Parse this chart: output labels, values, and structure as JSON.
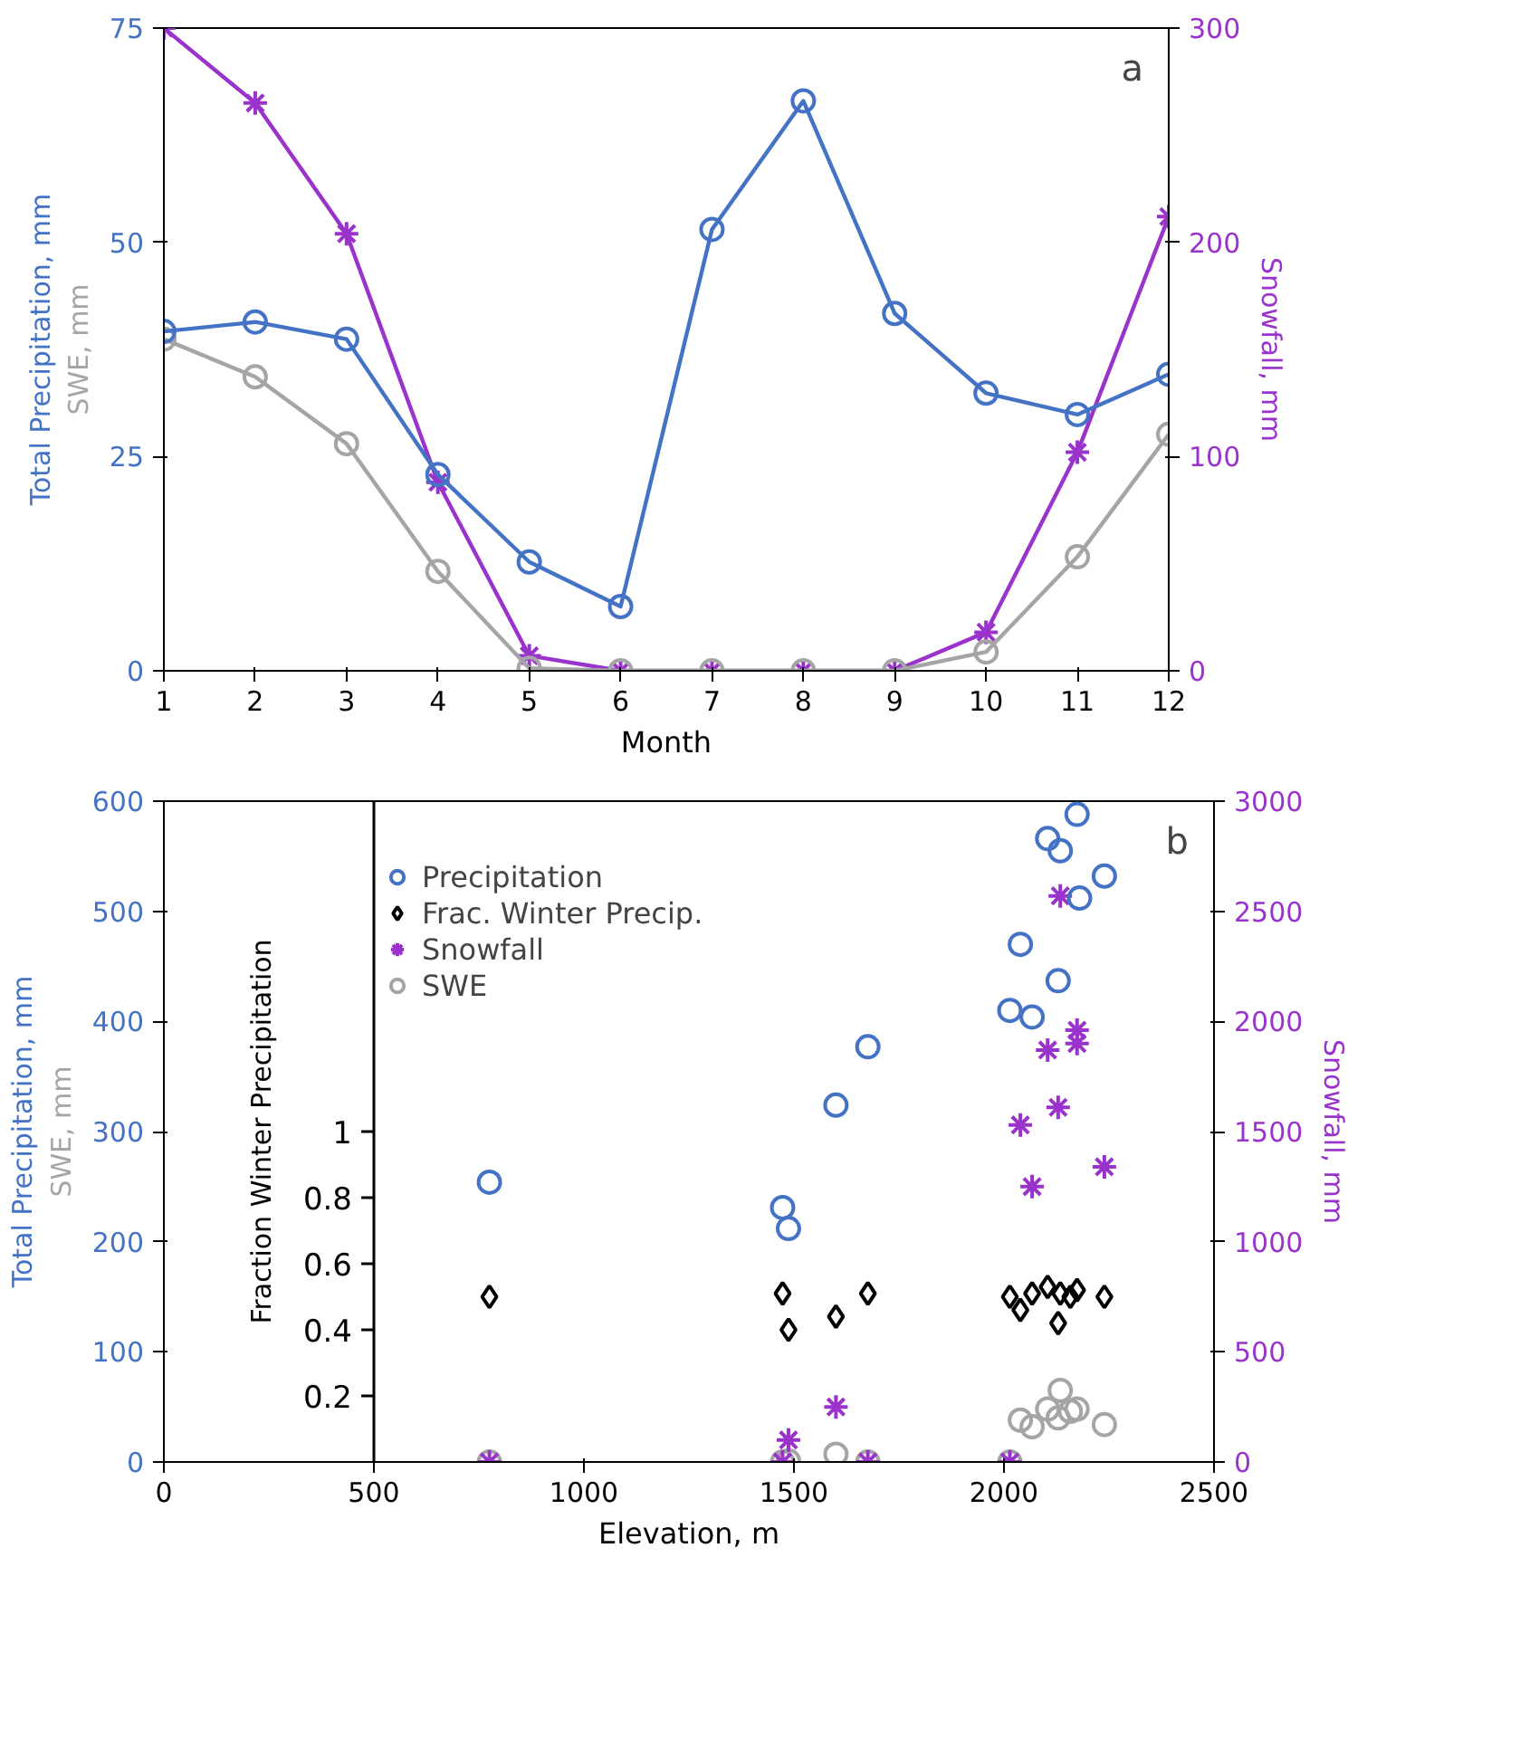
{
  "chart_data": [
    {
      "type": "line",
      "x": [
        1,
        2,
        3,
        4,
        5,
        6,
        7,
        8,
        9,
        10,
        11,
        12
      ],
      "xlim": [
        1,
        12
      ],
      "xticks": [
        1,
        2,
        3,
        4,
        5,
        6,
        7,
        8,
        9,
        10,
        11,
        12
      ],
      "ylim": [
        0,
        75
      ],
      "yticks": [
        0,
        25,
        50,
        75
      ],
      "y2lim": [
        0,
        300
      ],
      "y2ticks": [
        0,
        100,
        200,
        300
      ],
      "xlabel": "Month",
      "ylabel": "SWE, mm\nTotal Precipitation, mm",
      "y2label": "Snowfall, mm",
      "annotations": [
        "a"
      ],
      "grid": false,
      "legend": false,
      "series": [
        {
          "color": "#4472c4",
          "marker": "circle",
          "values": [
            39.6,
            40.7,
            38.7,
            22.9,
            12.7,
            7.5,
            51.5,
            66.5,
            41.7,
            32.4,
            29.9,
            34.6
          ]
        },
        {
          "color": "#a5a5a5",
          "marker": "circle",
          "values": [
            38.7,
            34.3,
            26.5,
            11.6,
            0.3,
            0,
            0,
            0,
            0,
            2.2,
            13.3,
            27.6
          ]
        },
        {
          "color": "#9933cc",
          "marker": "cross",
          "axis": "y2",
          "values": [
            300,
            265,
            204,
            88,
            7,
            0,
            0,
            0,
            0,
            18,
            102,
            212
          ]
        }
      ]
    },
    {
      "type": "scatter",
      "xlim": [
        0,
        2500
      ],
      "xticks": [
        0,
        500,
        1000,
        1500,
        2000,
        2500
      ],
      "ylim": [
        0,
        600
      ],
      "yticks": [
        0,
        100,
        200,
        300,
        400,
        500,
        600
      ],
      "y2lim": [
        0,
        3000
      ],
      "y2ticks": [
        0,
        500,
        1000,
        1500,
        2000,
        2500,
        3000
      ],
      "y3lim": [
        0,
        2
      ],
      "y3ticks": [
        0.2,
        0.4,
        0.6,
        0.8,
        1
      ],
      "y3label": "Fraction Winter Precipitation",
      "xlabel": "Elevation, m",
      "ylabel": "SWE, mm\nTotal Precipitation, mm",
      "y2label": "Snowfall, mm",
      "annotations": [
        "b"
      ],
      "grid": false,
      "legend": "top left",
      "series": [
        {
          "name": "Precipitation",
          "color": "#4472c4",
          "marker": "circle",
          "x": [
            775,
            1473,
            1487,
            1600,
            1676,
            2014,
            2067,
            2039,
            2129,
            2104,
            2134,
            2174,
            2180,
            2239
          ],
          "values": [
            254,
            231,
            212,
            324,
            377,
            410,
            404,
            470,
            437,
            566,
            555,
            588,
            512,
            532
          ]
        },
        {
          "name": "Frac. Winter Precip.",
          "color": "#000000",
          "marker": "diamond",
          "axis": "y3",
          "x": [
            775,
            1473,
            1487,
            1600,
            1676,
            2014,
            2039,
            2067,
            2104,
            2129,
            2134,
            2158,
            2174,
            2239
          ],
          "values": [
            0.5,
            0.51,
            0.4,
            0.44,
            0.51,
            0.5,
            0.46,
            0.51,
            0.53,
            0.42,
            0.51,
            0.5,
            0.52,
            0.5
          ]
        },
        {
          "name": "Snowfall",
          "color": "#9933cc",
          "marker": "cross",
          "axis": "y2",
          "x": [
            775,
            1473,
            1487,
            1600,
            1676,
            2014,
            2039,
            2067,
            2104,
            2129,
            2134,
            2174,
            2174,
            2239
          ],
          "values": [
            0,
            0,
            100,
            250,
            0,
            0,
            1530,
            1250,
            1870,
            1610,
            2570,
            1900,
            1960,
            1340
          ]
        },
        {
          "name": "SWE",
          "color": "#a5a5a5",
          "marker": "circle",
          "x": [
            775,
            1473,
            1487,
            1600,
            1676,
            2014,
            2039,
            2067,
            2104,
            2129,
            2134,
            2158,
            2174,
            2239
          ],
          "values": [
            0,
            0,
            1,
            7,
            0,
            0,
            38,
            32,
            48,
            40,
            65,
            46,
            48,
            34
          ]
        }
      ]
    }
  ]
}
